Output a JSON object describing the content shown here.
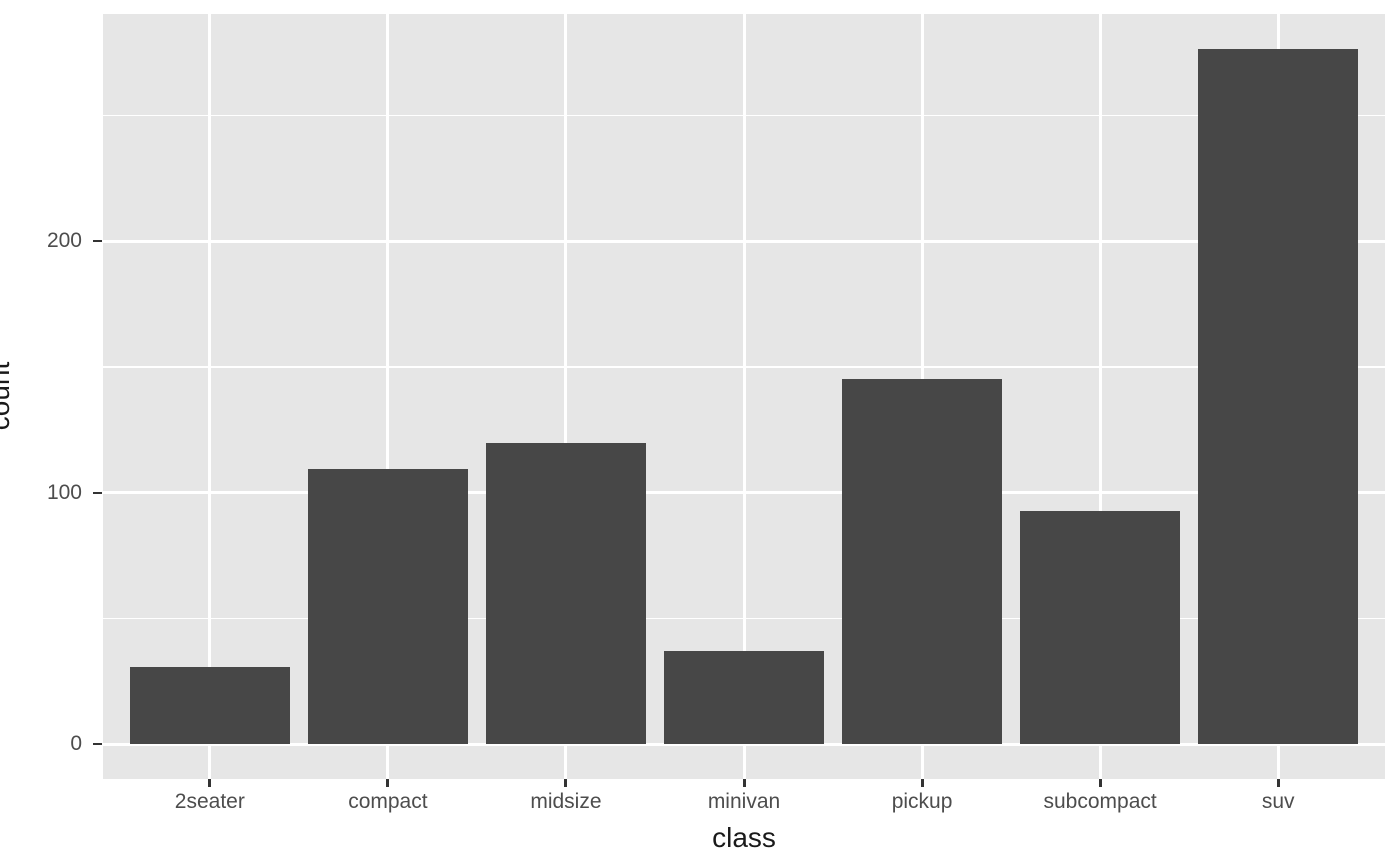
{
  "chart_data": {
    "type": "bar",
    "title": "",
    "xlabel": "class",
    "ylabel": "count",
    "categories": [
      "2seater",
      "compact",
      "midsize",
      "minivan",
      "pickup",
      "subcompact",
      "suv"
    ],
    "values": [
      30.8,
      109.2,
      119.9,
      37.1,
      145.3,
      92.8,
      276.4
    ],
    "y_axis": {
      "major_ticks": [
        0,
        100,
        200
      ],
      "minor_ticks": [
        50,
        150,
        250
      ],
      "range": [
        -13.9,
        290.3
      ]
    },
    "x_axis": {
      "outer_pad_units": 0.6,
      "bar_width_fraction": 0.9
    },
    "grid": "on",
    "legend": "none",
    "colors": {
      "bar_fill": "#474747",
      "panel_bg": "#E6E6E6",
      "grid": "#FFFFFF",
      "axis_text": "#4D4D4D",
      "axis_title": "#1A1A1A",
      "tick_mark": "#333333",
      "background": "#FFFFFF"
    }
  }
}
